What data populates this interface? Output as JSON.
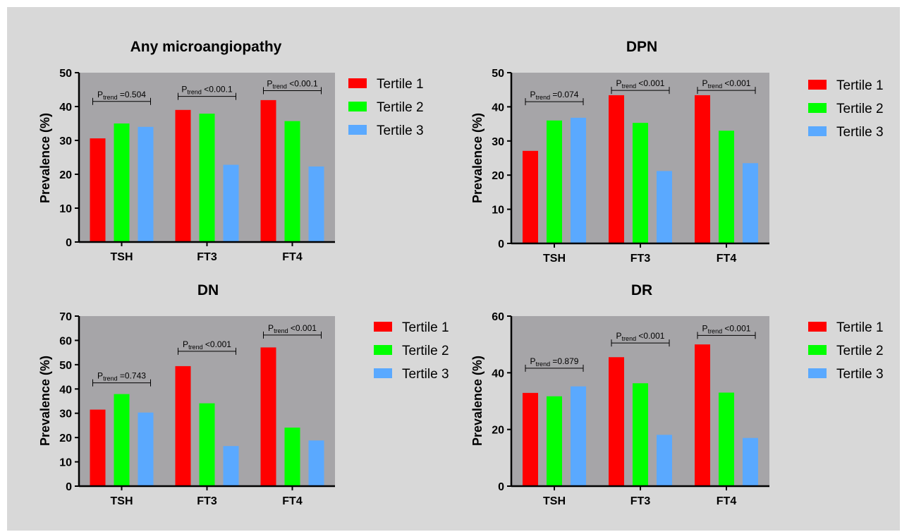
{
  "colors": {
    "tertile1": "#ff0000",
    "tertile2": "#00ff00",
    "tertile3": "#5aa9ff",
    "plot_background": "#a6a5a8",
    "figure_background": "#d8d8d8"
  },
  "chart_data": [
    {
      "type": "bar",
      "title": "Any microangiopathy",
      "ylabel": "Prevalence (%)",
      "ylim": [
        0,
        50
      ],
      "yticks": [
        0,
        10,
        20,
        30,
        40,
        50
      ],
      "categories": [
        "TSH",
        "FT3",
        "FT4"
      ],
      "series": [
        {
          "name": "Tertile 1",
          "values": [
            30.6,
            39.0,
            41.9
          ]
        },
        {
          "name": "Tertile 2",
          "values": [
            35.0,
            37.9,
            35.7
          ]
        },
        {
          "name": "Tertile 3",
          "values": [
            34.0,
            22.8,
            22.3
          ]
        }
      ],
      "annotations": [
        {
          "category": "TSH",
          "p_label": "P",
          "p_sub": "trend",
          "p_text": " =0.504",
          "y": 41.5
        },
        {
          "category": "FT3",
          "p_label": "P",
          "p_sub": "trend",
          "p_text": " <0.00.1",
          "y": 43
        },
        {
          "category": "FT4",
          "p_label": "P",
          "p_sub": "trend",
          "p_text": " <0.00.1",
          "y": 44.7
        }
      ],
      "legend": "right"
    },
    {
      "type": "bar",
      "title": "DPN",
      "ylabel": "Prevalence (%)",
      "ylim": [
        0,
        50
      ],
      "yticks": [
        0,
        10,
        20,
        30,
        40,
        50
      ],
      "categories": [
        "TSH",
        "FT3",
        "FT4"
      ],
      "series": [
        {
          "name": "Tertile 1",
          "values": [
            27.1,
            43.4,
            43.4
          ]
        },
        {
          "name": "Tertile 2",
          "values": [
            36.0,
            35.3,
            33.0
          ]
        },
        {
          "name": "Tertile 3",
          "values": [
            36.8,
            21.2,
            23.5
          ]
        }
      ],
      "annotations": [
        {
          "category": "TSH",
          "p_label": "P",
          "p_sub": "trend",
          "p_text": " =0.074",
          "y": 41.5
        },
        {
          "category": "FT3",
          "p_label": "P",
          "p_sub": "trend",
          "p_text": " <0.001",
          "y": 44.8
        },
        {
          "category": "FT4",
          "p_label": "P",
          "p_sub": "trend",
          "p_text": " <0.001",
          "y": 44.8
        }
      ],
      "legend": "right"
    },
    {
      "type": "bar",
      "title": "DN",
      "ylabel": "Prevalence (%)",
      "ylim": [
        0,
        70
      ],
      "yticks": [
        0,
        10,
        20,
        30,
        40,
        50,
        60,
        70
      ],
      "categories": [
        "TSH",
        "FT3",
        "FT4"
      ],
      "series": [
        {
          "name": "Tertile 1",
          "values": [
            31.5,
            49.4,
            57.1
          ]
        },
        {
          "name": "Tertile 2",
          "values": [
            37.9,
            34.1,
            24.1
          ]
        },
        {
          "name": "Tertile 3",
          "values": [
            30.3,
            16.5,
            18.8
          ]
        }
      ],
      "annotations": [
        {
          "category": "TSH",
          "p_label": "P",
          "p_sub": "trend",
          "p_text": " =0.743",
          "y": 42.5
        },
        {
          "category": "FT3",
          "p_label": "P",
          "p_sub": "trend",
          "p_text": " <0.001",
          "y": 55.5
        },
        {
          "category": "FT4",
          "p_label": "P",
          "p_sub": "trend",
          "p_text": " <0.001",
          "y": 62.2
        }
      ],
      "legend": "right"
    },
    {
      "type": "bar",
      "title": "DR",
      "ylabel": "Prevalence (%)",
      "ylim": [
        0,
        60
      ],
      "yticks": [
        0,
        20,
        40,
        60
      ],
      "categories": [
        "TSH",
        "FT3",
        "FT4"
      ],
      "series": [
        {
          "name": "Tertile 1",
          "values": [
            32.9,
            45.5,
            50.0
          ]
        },
        {
          "name": "Tertile 2",
          "values": [
            31.7,
            36.3,
            33.0
          ]
        },
        {
          "name": "Tertile 3",
          "values": [
            35.2,
            18.1,
            17.0
          ]
        }
      ],
      "annotations": [
        {
          "category": "TSH",
          "p_label": "P",
          "p_sub": "trend",
          "p_text": " =0.879",
          "y": 41.6
        },
        {
          "category": "FT3",
          "p_label": "P",
          "p_sub": "trend",
          "p_text": " <0.001",
          "y": 50.5
        },
        {
          "category": "FT4",
          "p_label": "P",
          "p_sub": "trend",
          "p_text": " <0.001",
          "y": 53.2
        }
      ],
      "legend": "right"
    }
  ]
}
